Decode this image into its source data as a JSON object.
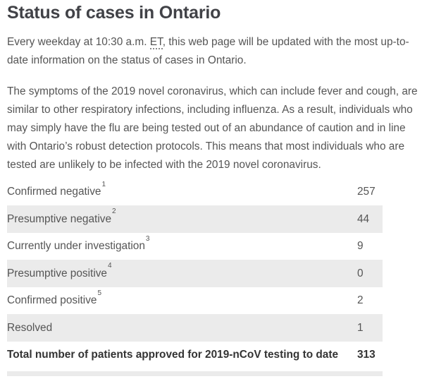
{
  "page": {
    "title": "Status of cases in Ontario",
    "intro": {
      "before_abbr": "Every weekday at 10:30 a.m. ",
      "abbr": "ET",
      "after_abbr": ", this web page will be updated with the most up-to-date information on the status of cases in Ontario."
    },
    "symptoms_paragraph": "The symptoms of the 2019 novel coronavirus, which can include fever and cough, are similar to other respiratory infections, including influenza. As a result, individuals who may simply have the flu are being tested out of an abundance of caution and in line with Ontario’s robust detection protocols. This means that most individuals who are tested are unlikely to be infected with the 2019 novel coronavirus."
  },
  "colors": {
    "heading_text": "#414247",
    "body_text": "#555555",
    "row_alt_background": "#ebebeb",
    "total_row_text": "#333333"
  },
  "table": {
    "rows": [
      {
        "label": "Confirmed negative",
        "footnote": "1",
        "value": "257"
      },
      {
        "label": "Presumptive negative",
        "footnote": "2",
        "value": "44"
      },
      {
        "label": "Currently under investigation",
        "footnote": "3",
        "value": "9"
      },
      {
        "label": "Presumptive positive",
        "footnote": "4",
        "value": "0"
      },
      {
        "label": "Confirmed positive",
        "footnote": "5",
        "value": "2"
      },
      {
        "label": "Resolved",
        "footnote": "",
        "value": "1"
      }
    ],
    "total_row": {
      "label": "Total number of patients approved for 2019-nCoV testing to date",
      "value": "313"
    }
  }
}
